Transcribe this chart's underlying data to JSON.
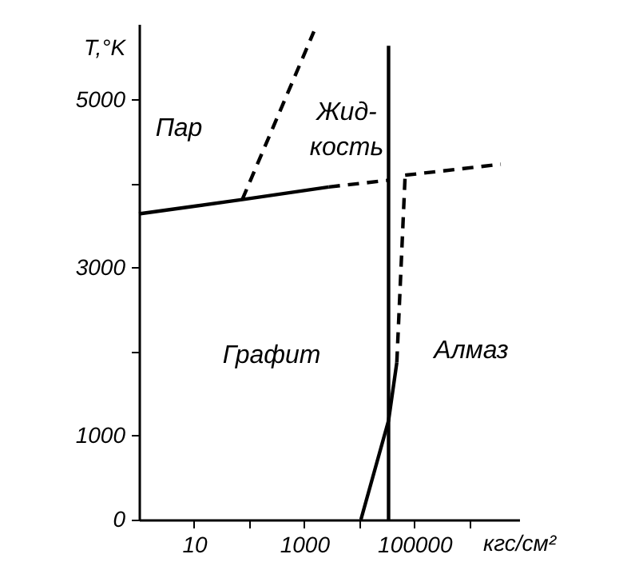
{
  "chart_data": {
    "type": "line",
    "xlabel": "кгс/см²",
    "ylabel": "T,°K",
    "log": "x",
    "grid": false,
    "xlim": [
      1,
      8000000
    ],
    "ylim": [
      0,
      5900
    ],
    "xticks": [
      10,
      {
        "value": 100,
        "label": null
      },
      1000,
      {
        "value": 10000,
        "label": null
      },
      100000,
      {
        "value": 1000000,
        "label": null
      }
    ],
    "yticks": [
      0,
      1000,
      {
        "value": 2000,
        "label": null
      },
      3000,
      {
        "value": 4000,
        "label": null
      },
      5000
    ],
    "series": [
      {
        "color": "#000000",
        "line_style": "solid",
        "x": [
          1,
          75,
          2800
        ],
        "values": [
          3640,
          3810,
          3960
        ]
      },
      {
        "color": "#000000",
        "line_style": "dashed",
        "x": [
          2800,
          34000
        ],
        "values": [
          3960,
          4040
        ]
      },
      {
        "color": "#000000",
        "line_style": "dashed",
        "x": [
          68000,
          3700000
        ],
        "values": [
          4100,
          4230
        ]
      },
      {
        "color": "#000000",
        "line_style": "dashed",
        "x": [
          75,
          1500
        ],
        "values": [
          3810,
          5810
        ]
      },
      {
        "color": "#000000",
        "line_style": "solid",
        "x": [
          34000,
          34000
        ],
        "values": [
          0,
          5640
        ]
      },
      {
        "color": "#000000",
        "line_style": "solid",
        "x": [
          10700,
          34000,
          48000
        ],
        "values": [
          0,
          1180,
          1870
        ]
      },
      {
        "color": "#000000",
        "line_style": "dashed",
        "x": [
          48000,
          68000
        ],
        "values": [
          1870,
          4100
        ]
      }
    ],
    "annotations": [
      "Пар",
      "Жид-\nкость",
      "Графит",
      "Алмаз"
    ]
  }
}
